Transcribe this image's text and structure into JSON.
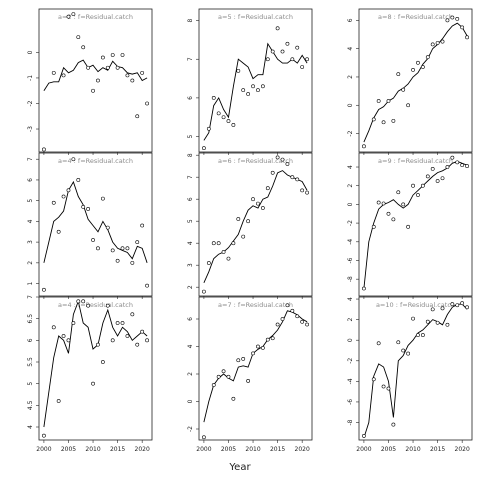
{
  "chart_data": {
    "type": "scatter",
    "layout": "3x3 small multiples",
    "xlabel": "Year",
    "ylabel": "",
    "x_ticks": [
      2000,
      2005,
      2010,
      2015,
      2020
    ],
    "panels": [
      {
        "title": "a=2 : f=Residual.catch",
        "ylim": [
          -3.9,
          1.7
        ],
        "yticks": [
          0,
          -1,
          -2,
          -3
        ],
        "fit": {
          "x": [
            2000,
            2001,
            2002,
            2003,
            2004,
            2005,
            2006,
            2007,
            2008,
            2009,
            2010,
            2011,
            2012,
            2013,
            2014,
            2015,
            2016,
            2017,
            2018,
            2019,
            2020,
            2021
          ],
          "y": [
            -1.5,
            -1.2,
            -1.15,
            -1.15,
            -0.6,
            -0.8,
            -0.7,
            -0.4,
            -0.3,
            -0.6,
            -0.5,
            -0.75,
            -0.6,
            -0.7,
            -0.35,
            -0.55,
            -0.6,
            -0.8,
            -0.85,
            -0.8,
            -1.1,
            -1.0
          ]
        },
        "points": {
          "x": [
            2000,
            2002,
            2004,
            2005,
            2006,
            2007,
            2008,
            2009,
            2010,
            2011,
            2012,
            2013,
            2014,
            2015,
            2016,
            2017,
            2018,
            2019,
            2020,
            2021
          ],
          "y": [
            -3.8,
            -0.8,
            -0.9,
            1.4,
            1.5,
            0.6,
            0.2,
            -0.6,
            -1.5,
            -1.1,
            -0.2,
            -0.6,
            -0.1,
            -0.6,
            -0.1,
            -0.9,
            -1.1,
            -2.5,
            -0.8,
            -2.0
          ]
        }
      },
      {
        "title": "a=5 : f=Residual.catch",
        "ylim": [
          4.6,
          8.3
        ],
        "yticks": [
          5,
          6,
          7,
          8
        ],
        "fit": {
          "x": [
            2000,
            2001,
            2002,
            2003,
            2004,
            2005,
            2006,
            2007,
            2008,
            2009,
            2010,
            2011,
            2012,
            2013,
            2014,
            2015,
            2016,
            2017,
            2018,
            2019,
            2020,
            2021
          ],
          "y": [
            4.9,
            5.1,
            5.8,
            6.0,
            5.7,
            5.5,
            6.3,
            7.0,
            6.9,
            6.8,
            6.5,
            6.6,
            6.6,
            7.4,
            7.2,
            7.0,
            6.9,
            6.9,
            7.0,
            6.9,
            7.1,
            6.9
          ]
        },
        "points": {
          "x": [
            2000,
            2001,
            2002,
            2003,
            2004,
            2005,
            2006,
            2007,
            2008,
            2009,
            2010,
            2011,
            2012,
            2013,
            2014,
            2015,
            2016,
            2017,
            2018,
            2019,
            2020,
            2021
          ],
          "y": [
            4.7,
            5.2,
            6.0,
            5.6,
            5.5,
            5.4,
            5.3,
            6.7,
            6.2,
            6.1,
            6.3,
            6.2,
            6.3,
            7.0,
            7.2,
            7.8,
            7.2,
            7.4,
            7.0,
            7.3,
            6.8,
            7.0
          ]
        }
      },
      {
        "title": "a=8 : f=Residual.catch",
        "ylim": [
          -3.3,
          6.8
        ],
        "yticks": [
          6,
          4,
          2,
          0,
          -2
        ],
        "fit": {
          "x": [
            2000,
            2001,
            2002,
            2003,
            2004,
            2005,
            2006,
            2007,
            2008,
            2009,
            2010,
            2011,
            2012,
            2013,
            2014,
            2015,
            2016,
            2017,
            2018,
            2019,
            2020,
            2021
          ],
          "y": [
            -2.6,
            -1.8,
            -0.9,
            -0.3,
            -0.1,
            0.3,
            0.5,
            1.0,
            1.2,
            1.5,
            2.0,
            2.3,
            2.9,
            3.3,
            4.0,
            4.3,
            4.7,
            5.2,
            5.6,
            5.8,
            5.5,
            4.9
          ]
        },
        "points": {
          "x": [
            2000,
            2002,
            2003,
            2004,
            2005,
            2006,
            2007,
            2008,
            2009,
            2010,
            2011,
            2012,
            2013,
            2014,
            2015,
            2016,
            2017,
            2018,
            2019,
            2020,
            2021
          ],
          "y": [
            -2.9,
            -1.0,
            0.3,
            -1.2,
            0.3,
            -1.1,
            2.2,
            1.1,
            0.0,
            2.5,
            3.0,
            2.7,
            3.4,
            4.3,
            4.4,
            4.5,
            6.0,
            6.2,
            6.1,
            5.5,
            4.8
          ]
        }
      },
      {
        "title": "a=4 : f=Residual.catch",
        "ylim": [
          0.4,
          7.3
        ],
        "yticks": [
          7,
          6,
          5,
          4,
          3,
          2,
          1
        ],
        "fit": {
          "x": [
            2000,
            2001,
            2002,
            2003,
            2004,
            2005,
            2006,
            2007,
            2008,
            2009,
            2010,
            2011,
            2012,
            2013,
            2014,
            2015,
            2016,
            2017,
            2018,
            2019,
            2020,
            2021
          ],
          "y": [
            2.0,
            3.0,
            4.0,
            4.2,
            4.5,
            5.5,
            5.9,
            5.2,
            4.8,
            4.1,
            3.8,
            3.5,
            4.0,
            3.6,
            3.0,
            2.7,
            2.6,
            2.5,
            2.2,
            2.8,
            2.7,
            2.0
          ]
        },
        "points": {
          "x": [
            2000,
            2002,
            2003,
            2004,
            2005,
            2006,
            2007,
            2008,
            2009,
            2010,
            2011,
            2012,
            2013,
            2014,
            2015,
            2016,
            2017,
            2018,
            2019,
            2020,
            2021
          ],
          "y": [
            0.7,
            4.9,
            3.5,
            5.2,
            5.5,
            7.0,
            6.0,
            4.7,
            4.6,
            3.1,
            2.7,
            5.1,
            3.7,
            2.6,
            2.1,
            2.7,
            2.7,
            2.0,
            3.0,
            3.8,
            0.9
          ]
        }
      },
      {
        "title": "a=6 : f=Residual.catch",
        "ylim": [
          1.6,
          8.1
        ],
        "yticks": [
          2,
          3,
          4,
          5,
          6,
          7,
          8
        ],
        "fit": {
          "x": [
            2000,
            2001,
            2002,
            2003,
            2004,
            2005,
            2006,
            2007,
            2008,
            2009,
            2010,
            2011,
            2012,
            2013,
            2014,
            2015,
            2016,
            2017,
            2018,
            2019,
            2020,
            2021
          ],
          "y": [
            2.2,
            2.7,
            3.3,
            3.5,
            3.6,
            3.8,
            4.1,
            4.4,
            5.0,
            5.5,
            5.7,
            5.6,
            6.0,
            6.1,
            6.6,
            7.2,
            7.3,
            7.1,
            7.0,
            6.9,
            6.8,
            6.4
          ]
        },
        "points": {
          "x": [
            2000,
            2001,
            2002,
            2003,
            2004,
            2005,
            2006,
            2007,
            2008,
            2009,
            2010,
            2011,
            2012,
            2013,
            2014,
            2015,
            2016,
            2017,
            2018,
            2019,
            2020,
            2021
          ],
          "y": [
            1.8,
            3.1,
            4.0,
            4.0,
            3.6,
            3.3,
            4.0,
            5.1,
            4.3,
            5.0,
            6.0,
            5.8,
            5.6,
            6.5,
            7.2,
            7.9,
            7.8,
            7.6,
            7.0,
            6.9,
            6.4,
            6.3
          ]
        }
      },
      {
        "title": "a=9 : f=Residual.catch",
        "ylim": [
          -9.8,
          5.5
        ],
        "yticks": [
          4,
          2,
          0,
          -2,
          -4,
          -6,
          -8
        ],
        "fit": {
          "x": [
            2000,
            2001,
            2002,
            2003,
            2004,
            2005,
            2006,
            2007,
            2008,
            2009,
            2010,
            2011,
            2012,
            2013,
            2014,
            2015,
            2016,
            2017,
            2018,
            2019,
            2020,
            2021
          ],
          "y": [
            -9.0,
            -4.0,
            -2.0,
            -0.5,
            0.0,
            0.2,
            0.5,
            0.0,
            -0.4,
            0.0,
            1.0,
            1.5,
            2.0,
            2.5,
            3.0,
            3.4,
            3.6,
            3.9,
            4.4,
            4.6,
            4.4,
            4.2
          ]
        },
        "points": {
          "x": [
            2000,
            2002,
            2003,
            2004,
            2005,
            2006,
            2007,
            2008,
            2009,
            2010,
            2011,
            2012,
            2013,
            2014,
            2015,
            2016,
            2017,
            2018,
            2019,
            2020,
            2021
          ],
          "y": [
            -9.0,
            -2.4,
            0.2,
            0.1,
            -1.0,
            -1.6,
            1.3,
            0.0,
            -2.4,
            2.0,
            1.0,
            2.0,
            3.0,
            3.8,
            2.5,
            2.8,
            4.0,
            5.0,
            4.5,
            4.2,
            4.1
          ]
        }
      },
      {
        "title": "a=4 : f=Residual.catch",
        "ylim": [
          3.7,
          7.0
        ],
        "yticks": [
          7.0,
          6.5,
          6.0,
          5.5,
          5.0,
          4.5,
          4.0
        ],
        "fit": {
          "x": [
            2000,
            2001,
            2002,
            2003,
            2004,
            2005,
            2006,
            2007,
            2008,
            2009,
            2010,
            2011,
            2012,
            2013,
            2014,
            2015,
            2016,
            2017,
            2018,
            2019,
            2020,
            2021
          ],
          "y": [
            4.0,
            4.8,
            5.6,
            6.1,
            6.0,
            5.7,
            6.6,
            6.9,
            6.4,
            6.3,
            5.8,
            5.9,
            6.4,
            6.7,
            6.3,
            6.1,
            6.3,
            6.2,
            6.0,
            6.1,
            6.2,
            6.1
          ]
        },
        "points": {
          "x": [
            2000,
            2002,
            2003,
            2004,
            2005,
            2006,
            2007,
            2008,
            2009,
            2010,
            2011,
            2012,
            2013,
            2014,
            2015,
            2016,
            2017,
            2018,
            2019,
            2020,
            2021
          ],
          "y": [
            3.8,
            6.3,
            4.6,
            6.1,
            6.0,
            6.4,
            6.9,
            6.9,
            6.8,
            5.0,
            5.9,
            5.5,
            6.8,
            6.0,
            6.4,
            6.4,
            6.1,
            6.6,
            5.9,
            6.2,
            6.0
          ]
        }
      },
      {
        "title": "a=7 : f=Residual.catch",
        "ylim": [
          -2.8,
          7.6
        ],
        "yticks": [
          6,
          4,
          2,
          0,
          -2
        ],
        "fit": {
          "x": [
            2000,
            2001,
            2002,
            2003,
            2004,
            2005,
            2006,
            2007,
            2008,
            2009,
            2010,
            2011,
            2012,
            2013,
            2014,
            2015,
            2016,
            2017,
            2018,
            2019,
            2020,
            2021
          ],
          "y": [
            -1.5,
            0.0,
            1.2,
            1.7,
            2.0,
            1.7,
            1.5,
            2.5,
            2.6,
            2.5,
            3.5,
            3.8,
            4.0,
            4.5,
            4.8,
            5.2,
            5.8,
            6.6,
            6.5,
            6.3,
            6.0,
            5.8
          ]
        },
        "points": {
          "x": [
            2000,
            2002,
            2003,
            2004,
            2005,
            2006,
            2007,
            2008,
            2009,
            2010,
            2011,
            2012,
            2013,
            2014,
            2015,
            2016,
            2017,
            2018,
            2019,
            2020,
            2021
          ],
          "y": [
            -2.6,
            1.2,
            1.8,
            2.2,
            1.8,
            0.2,
            3.0,
            3.1,
            1.5,
            3.5,
            4.0,
            3.9,
            4.5,
            4.6,
            5.6,
            6.0,
            7.0,
            6.6,
            6.2,
            5.8,
            5.6
          ]
        }
      },
      {
        "title": "a=10 : f=Residual.catch",
        "ylim": [
          -9.7,
          4.2
        ],
        "yticks": [
          4,
          2,
          0,
          -2,
          -4,
          -6,
          -8
        ],
        "fit": {
          "x": [
            2000,
            2001,
            2002,
            2003,
            2004,
            2005,
            2006,
            2007,
            2008,
            2009,
            2010,
            2011,
            2012,
            2013,
            2014,
            2015,
            2016,
            2017,
            2018,
            2019,
            2020,
            2021
          ],
          "y": [
            -9.5,
            -8.0,
            -3.5,
            -2.3,
            -2.6,
            -4.0,
            -7.5,
            -2.0,
            -1.5,
            -0.5,
            0.0,
            0.7,
            1.0,
            1.5,
            2.0,
            1.8,
            1.5,
            2.5,
            3.2,
            3.5,
            3.5,
            3.0
          ]
        },
        "points": {
          "x": [
            2000,
            2002,
            2003,
            2004,
            2005,
            2006,
            2007,
            2008,
            2009,
            2010,
            2011,
            2012,
            2013,
            2014,
            2015,
            2016,
            2017,
            2018,
            2019,
            2020,
            2021
          ],
          "y": [
            -9.3,
            -3.8,
            -0.3,
            -4.5,
            -4.7,
            -8.2,
            -0.2,
            -1.0,
            -1.3,
            2.1,
            0.5,
            0.5,
            1.8,
            3.0,
            1.7,
            3.1,
            1.5,
            3.5,
            3.4,
            3.6,
            3.2
          ]
        }
      }
    ]
  }
}
